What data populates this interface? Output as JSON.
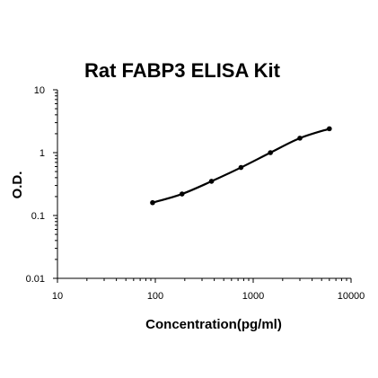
{
  "chart_data": {
    "type": "line",
    "title": "Rat FABP3 ELISA Kit",
    "xlabel": "Concentration(pg/ml)",
    "ylabel": "O.D.",
    "x_scale": "log",
    "y_scale": "log",
    "xlim": [
      10,
      10000
    ],
    "ylim": [
      0.01,
      10
    ],
    "x_ticks": [
      "10",
      "100",
      "1000",
      "10000"
    ],
    "y_ticks": [
      "0.01",
      "0.1",
      "1",
      "10"
    ],
    "grid": false,
    "legend": "none",
    "line_color": "#000000",
    "series": [
      {
        "x": [
          93.75,
          187.5,
          375,
          750,
          1500,
          3000,
          6000
        ],
        "y": [
          0.16,
          0.22,
          0.35,
          0.58,
          1.0,
          1.7,
          2.4
        ]
      }
    ]
  }
}
